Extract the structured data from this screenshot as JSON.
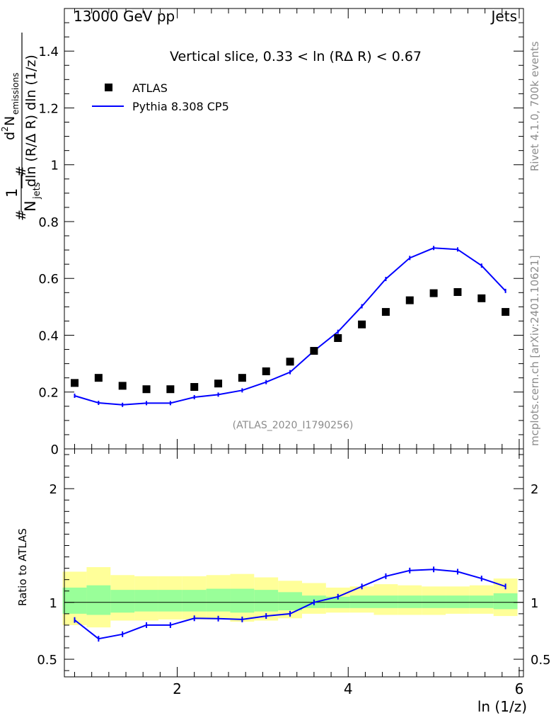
{
  "header": {
    "left": "13000 GeV pp",
    "right": "Jets"
  },
  "side_text": {
    "rivet": "Rivet 4.1.0,  700k events",
    "mcplots": "mcplots.cern.ch [arXiv:2401.10621]"
  },
  "y_label": {
    "hash1": "#",
    "frac_num": "1",
    "frac_den": "N",
    "frac_den_sub": "jets",
    "hash2": "#",
    "top_d": "d",
    "top_sup": "2",
    "top_N": "N",
    "top_sub": "emissions",
    "bottom": "dln (R/Δ R) dln (1/z)"
  },
  "ratio_label": "Ratio to ATLAS",
  "x_label": "ln (1/z)",
  "watermark": "(ATLAS_2020_I1790256)",
  "colors": {
    "data": "#000000",
    "mc": "#0000ff",
    "band_inner": "#99ff99",
    "band_outer": "#ffff99",
    "ref_line": "#000000"
  },
  "chart_data": [
    {
      "type": "scatter",
      "title": "Vertical slice, 0.33 < ln (RΔ R) < 0.67",
      "xlabel": "ln (1/z)",
      "ylabel": "1/N_jets d²N_emissions / dln(R/ΔR) dln(1/z)",
      "xlim": [
        0.68,
        6.05
      ],
      "ylim": [
        0,
        1.55
      ],
      "y_ticks": [
        0,
        0.2,
        0.4,
        0.6,
        0.8,
        1,
        1.2,
        1.4
      ],
      "y_tick_labels": [
        "0",
        "0.2",
        "0.4",
        "0.6",
        "0.8",
        "1",
        "1.2",
        "1.4"
      ],
      "legend": {
        "position": "top-left",
        "data_label": "ATLAS",
        "mc_label": "Pythia 8.308 CP5"
      },
      "x": [
        0.8,
        1.08,
        1.36,
        1.64,
        1.92,
        2.2,
        2.48,
        2.76,
        3.04,
        3.32,
        3.6,
        3.88,
        4.16,
        4.44,
        4.72,
        5.0,
        5.28,
        5.56,
        5.84
      ],
      "bin_edges": [
        0.66,
        0.94,
        1.22,
        1.5,
        1.78,
        2.06,
        2.34,
        2.62,
        2.9,
        3.18,
        3.46,
        3.74,
        4.02,
        4.3,
        4.58,
        4.86,
        5.14,
        5.42,
        5.7,
        5.98
      ],
      "series": [
        {
          "name": "ATLAS",
          "style": "markers",
          "values": [
            0.232,
            0.25,
            0.222,
            0.21,
            0.21,
            0.218,
            0.23,
            0.25,
            0.273,
            0.307,
            0.345,
            0.39,
            0.438,
            0.482,
            0.523,
            0.548,
            0.552,
            0.53,
            0.482
          ]
        },
        {
          "name": "Pythia 8.308 CP5",
          "style": "line",
          "values": [
            0.187,
            0.162,
            0.155,
            0.161,
            0.161,
            0.182,
            0.191,
            0.206,
            0.235,
            0.27,
            0.345,
            0.412,
            0.502,
            0.598,
            0.672,
            0.707,
            0.702,
            0.645,
            0.556
          ]
        }
      ]
    },
    {
      "type": "line",
      "title": "",
      "xlabel": "ln (1/z)",
      "ylabel": "Ratio to ATLAS",
      "xlim": [
        0.68,
        6.05
      ],
      "ylim": [
        0.345,
        2.35
      ],
      "y_ticks": [
        0.5,
        1,
        2
      ],
      "y_tick_labels": [
        "0.5",
        "1",
        "2"
      ],
      "x_ticks": [
        2,
        4,
        6
      ],
      "x_tick_labels": [
        "2",
        "4",
        "6"
      ],
      "x": [
        0.8,
        1.08,
        1.36,
        1.64,
        1.92,
        2.2,
        2.48,
        2.76,
        3.04,
        3.32,
        3.6,
        3.88,
        4.16,
        4.44,
        4.72,
        5.0,
        5.28,
        5.56,
        5.84
      ],
      "bin_edges": [
        0.66,
        0.94,
        1.22,
        1.5,
        1.78,
        2.06,
        2.34,
        2.62,
        2.9,
        3.18,
        3.46,
        3.74,
        4.02,
        4.3,
        4.58,
        4.86,
        5.14,
        5.42,
        5.7,
        5.98
      ],
      "ratio": [
        0.845,
        0.68,
        0.72,
        0.8,
        0.8,
        0.86,
        0.857,
        0.85,
        0.88,
        0.9,
        1.0,
        1.05,
        1.14,
        1.23,
        1.28,
        1.29,
        1.27,
        1.21,
        1.14
      ],
      "band_stat_lo": [
        0.9,
        0.89,
        0.91,
        0.92,
        0.92,
        0.92,
        0.92,
        0.91,
        0.92,
        0.93,
        0.95,
        0.95,
        0.95,
        0.95,
        0.95,
        0.95,
        0.95,
        0.95,
        0.94
      ],
      "band_stat_hi": [
        1.13,
        1.15,
        1.11,
        1.11,
        1.11,
        1.11,
        1.12,
        1.12,
        1.11,
        1.09,
        1.06,
        1.05,
        1.06,
        1.06,
        1.06,
        1.06,
        1.06,
        1.06,
        1.08
      ],
      "band_total_lo": [
        0.8,
        0.78,
        0.84,
        0.84,
        0.85,
        0.85,
        0.85,
        0.83,
        0.84,
        0.86,
        0.9,
        0.91,
        0.91,
        0.89,
        0.89,
        0.89,
        0.9,
        0.9,
        0.88
      ],
      "band_total_hi": [
        1.27,
        1.31,
        1.24,
        1.23,
        1.23,
        1.23,
        1.24,
        1.25,
        1.22,
        1.19,
        1.17,
        1.13,
        1.14,
        1.16,
        1.15,
        1.14,
        1.14,
        1.15,
        1.21
      ]
    }
  ]
}
